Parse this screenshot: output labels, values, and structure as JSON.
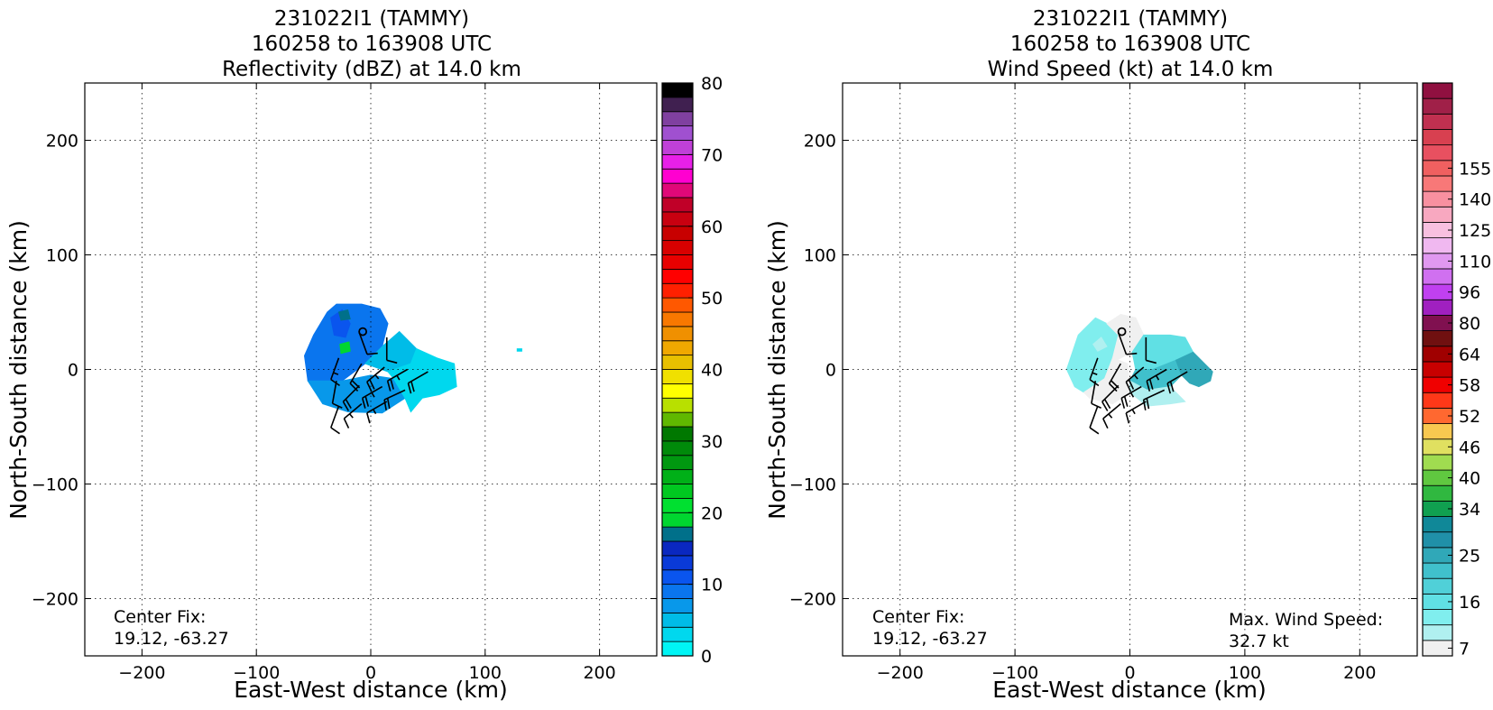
{
  "panels": [
    {
      "title_lines": [
        "231022I1 (TAMMY)",
        "160258 to 163908 UTC",
        "Reflectivity (dBZ) at 14.0 km"
      ],
      "xlabel": "East-West distance (km)",
      "ylabel": "North-South distance (km)",
      "center_fix_label": "Center Fix:",
      "center_fix_value": "19.12, -63.27",
      "max_wind_label": "",
      "max_wind_value": ""
    },
    {
      "title_lines": [
        "231022I1 (TAMMY)",
        "160258 to 163908 UTC",
        "Wind Speed (kt) at 14.0 km"
      ],
      "xlabel": "East-West distance (km)",
      "ylabel": "North-South distance (km)",
      "center_fix_label": "Center Fix:",
      "center_fix_value": "19.12, -63.27",
      "max_wind_label": "Max. Wind Speed:",
      "max_wind_value": "32.7 kt"
    }
  ],
  "chart_data": [
    {
      "type": "heatmap",
      "title": "231022I1 (TAMMY) 160258 to 163908 UTC Reflectivity (dBZ) at 14.0 km",
      "xlabel": "East-West distance (km)",
      "ylabel": "North-South distance (km)",
      "xlim": [
        -250,
        250
      ],
      "ylim": [
        -250,
        250
      ],
      "xticks": [
        -200,
        -100,
        0,
        100,
        200
      ],
      "yticks": [
        -200,
        -100,
        0,
        100,
        200
      ],
      "xtick_labels": [
        "−200",
        "−100",
        "0",
        "100",
        "200"
      ],
      "ytick_labels": [
        "−200",
        "−100",
        "0",
        "100",
        "200"
      ],
      "grid": true,
      "center_marker_km": [
        -7,
        33
      ],
      "echo_region_outline_km": [
        [
          -30,
          57
        ],
        [
          -8,
          57
        ],
        [
          8,
          53
        ],
        [
          15,
          40
        ],
        [
          25,
          33
        ],
        [
          40,
          18
        ],
        [
          58,
          10
        ],
        [
          73,
          5
        ],
        [
          75,
          -15
        ],
        [
          60,
          -22
        ],
        [
          45,
          -25
        ],
        [
          35,
          -37
        ],
        [
          10,
          -38
        ],
        [
          -20,
          -37
        ],
        [
          -42,
          -30
        ],
        [
          -55,
          -15
        ],
        [
          -58,
          12
        ],
        [
          -50,
          30
        ],
        [
          -38,
          50
        ]
      ],
      "echo_patches": [
        {
          "dbz": 11,
          "polygon_km": [
            [
              -30,
              57
            ],
            [
              -8,
              57
            ],
            [
              8,
              53
            ],
            [
              15,
              40
            ],
            [
              10,
              20
            ],
            [
              -5,
              5
            ],
            [
              -25,
              -10
            ],
            [
              -45,
              -15
            ],
            [
              -55,
              -10
            ],
            [
              -58,
              12
            ],
            [
              -50,
              30
            ],
            [
              -38,
              50
            ]
          ]
        },
        {
          "dbz": 8,
          "polygon_km": [
            [
              -55,
              -10
            ],
            [
              -25,
              -10
            ],
            [
              0,
              -5
            ],
            [
              20,
              -8
            ],
            [
              30,
              -25
            ],
            [
              10,
              -38
            ],
            [
              -20,
              -37
            ],
            [
              -42,
              -30
            ]
          ]
        },
        {
          "dbz": 13,
          "polygon_km": [
            [
              -35,
              45
            ],
            [
              -25,
              52
            ],
            [
              -18,
              40
            ],
            [
              -22,
              28
            ],
            [
              -32,
              30
            ]
          ]
        },
        {
          "dbz": 6,
          "polygon_km": [
            [
              -5,
              5
            ],
            [
              10,
              20
            ],
            [
              25,
              33
            ],
            [
              40,
              18
            ],
            [
              35,
              5
            ],
            [
              15,
              -2
            ]
          ]
        },
        {
          "dbz": 3,
          "polygon_km": [
            [
              15,
              -2
            ],
            [
              35,
              5
            ],
            [
              40,
              18
            ],
            [
              58,
              10
            ],
            [
              73,
              5
            ],
            [
              75,
              -15
            ],
            [
              60,
              -22
            ],
            [
              45,
              -25
            ],
            [
              35,
              -37
            ],
            [
              30,
              -25
            ],
            [
              20,
              -8
            ]
          ]
        },
        {
          "dbz": 22,
          "polygon_km": [
            [
              -28,
              50
            ],
            [
              -20,
              52
            ],
            [
              -18,
              44
            ],
            [
              -26,
              43
            ]
          ]
        },
        {
          "dbz": 24,
          "polygon_km": [
            [
              -27,
              22
            ],
            [
              -19,
              24
            ],
            [
              -18,
              16
            ],
            [
              -26,
              14
            ]
          ]
        },
        {
          "dbz": 3,
          "polygon_km": [
            [
              128,
              18
            ],
            [
              132,
              18
            ],
            [
              132,
              16
            ],
            [
              128,
              16
            ]
          ]
        }
      ],
      "wind_barbs_km": [
        {
          "x": -28,
          "y": 10,
          "dir_deg": 200,
          "kt": 15
        },
        {
          "x": -8,
          "y": 5,
          "dir_deg": 210,
          "kt": 20
        },
        {
          "x": 12,
          "y": 2,
          "dir_deg": 230,
          "kt": 25
        },
        {
          "x": 32,
          "y": 0,
          "dir_deg": 240,
          "kt": 25
        },
        {
          "x": 50,
          "y": -2,
          "dir_deg": 240,
          "kt": 20
        },
        {
          "x": -30,
          "y": -10,
          "dir_deg": 190,
          "kt": 10
        },
        {
          "x": -10,
          "y": -14,
          "dir_deg": 225,
          "kt": 20
        },
        {
          "x": 10,
          "y": -15,
          "dir_deg": 240,
          "kt": 25
        },
        {
          "x": 30,
          "y": -18,
          "dir_deg": 245,
          "kt": 20
        },
        {
          "x": -28,
          "y": -32,
          "dir_deg": 200,
          "kt": 10
        },
        {
          "x": -8,
          "y": -30,
          "dir_deg": 230,
          "kt": 15
        },
        {
          "x": 14,
          "y": -28,
          "dir_deg": 240,
          "kt": 15
        },
        {
          "x": -10,
          "y": 32,
          "dir_deg": 160,
          "kt": 10
        },
        {
          "x": 14,
          "y": 28,
          "dir_deg": 180,
          "kt": 10
        }
      ],
      "colorbar": {
        "min": 0,
        "max": 80,
        "step": 2.5,
        "tick_values": [
          0,
          10,
          20,
          30,
          40,
          50,
          60,
          70,
          80
        ],
        "tick_labels": [
          "0",
          "10",
          "20",
          "30",
          "40",
          "50",
          "60",
          "70",
          "80"
        ],
        "colors": [
          "#00f5f5",
          "#00d8ee",
          "#00bce8",
          "#0898ea",
          "#0a75ee",
          "#0a55ee",
          "#0a3ad8",
          "#0a28c0",
          "#00708a",
          "#00d630",
          "#00e030",
          "#00c820",
          "#00b018",
          "#009810",
          "#008a0a",
          "#007800",
          "#60b800",
          "#b8e000",
          "#ffff00",
          "#f0e000",
          "#e8c000",
          "#f0a800",
          "#f09000",
          "#f87800",
          "#ff5800",
          "#ff2000",
          "#ff0000",
          "#e80000",
          "#d80000",
          "#c80000",
          "#c80010",
          "#c00028",
          "#e00878",
          "#ff00d0",
          "#e820e8",
          "#c040d8",
          "#a050d0",
          "#8040a0",
          "#402050",
          "#000000"
        ]
      }
    },
    {
      "type": "heatmap",
      "title": "231022I1 (TAMMY) 160258 to 163908 UTC Wind Speed (kt) at 14.0 km",
      "xlabel": "East-West distance (km)",
      "ylabel": "North-South distance (km)",
      "xlim": [
        -250,
        250
      ],
      "ylim": [
        -250,
        250
      ],
      "xticks": [
        -200,
        -100,
        0,
        100,
        200
      ],
      "yticks": [
        -200,
        -100,
        0,
        100,
        200
      ],
      "xtick_labels": [
        "−200",
        "−100",
        "0",
        "100",
        "200"
      ],
      "ytick_labels": [
        "−200",
        "−100",
        "0",
        "100",
        "200"
      ],
      "grid": true,
      "center_marker_km": [
        -7,
        33
      ],
      "max_wind_speed_kt": 32.7,
      "echo_region_outline_km": [
        [
          -30,
          45
        ],
        [
          -20,
          40
        ],
        [
          -8,
          48
        ],
        [
          5,
          45
        ],
        [
          15,
          30
        ],
        [
          35,
          30
        ],
        [
          48,
          28
        ],
        [
          55,
          15
        ],
        [
          65,
          5
        ],
        [
          72,
          -2
        ],
        [
          70,
          -10
        ],
        [
          60,
          -15
        ],
        [
          48,
          -28
        ],
        [
          35,
          -30
        ],
        [
          15,
          -32
        ],
        [
          -15,
          -30
        ],
        [
          -35,
          -25
        ],
        [
          -48,
          -15
        ],
        [
          -55,
          0
        ],
        [
          -50,
          15
        ],
        [
          -45,
          30
        ]
      ],
      "echo_patches": [
        {
          "kt": 14,
          "polygon_km": [
            [
              -30,
              45
            ],
            [
              -20,
              40
            ],
            [
              -10,
              30
            ],
            [
              -15,
              10
            ],
            [
              -22,
              -8
            ],
            [
              -40,
              -20
            ],
            [
              -48,
              -15
            ],
            [
              -55,
              0
            ],
            [
              -50,
              15
            ],
            [
              -45,
              30
            ]
          ]
        },
        {
          "kt": 6,
          "polygon_km": [
            [
              -20,
              40
            ],
            [
              -8,
              48
            ],
            [
              5,
              45
            ],
            [
              12,
              30
            ],
            [
              2,
              15
            ],
            [
              -12,
              8
            ],
            [
              -15,
              10
            ],
            [
              -10,
              30
            ]
          ]
        },
        {
          "kt": 8,
          "polygon_km": [
            [
              -22,
              -8
            ],
            [
              -15,
              10
            ],
            [
              -2,
              5
            ],
            [
              0,
              -20
            ],
            [
              -15,
              -30
            ],
            [
              -35,
              -25
            ],
            [
              -40,
              -20
            ]
          ]
        },
        {
          "kt": 16,
          "polygon_km": [
            [
              2,
              15
            ],
            [
              12,
              30
            ],
            [
              15,
              30
            ],
            [
              35,
              30
            ],
            [
              48,
              28
            ],
            [
              55,
              15
            ],
            [
              40,
              8
            ],
            [
              20,
              0
            ],
            [
              5,
              0
            ]
          ]
        },
        {
          "kt": 22,
          "polygon_km": [
            [
              5,
              0
            ],
            [
              20,
              0
            ],
            [
              40,
              8
            ],
            [
              45,
              -5
            ],
            [
              35,
              -15
            ],
            [
              15,
              -18
            ],
            [
              0,
              -10
            ]
          ]
        },
        {
          "kt": 12,
          "polygon_km": [
            [
              0,
              -10
            ],
            [
              15,
              -18
            ],
            [
              35,
              -15
            ],
            [
              48,
              -28
            ],
            [
              35,
              -30
            ],
            [
              15,
              -32
            ],
            [
              0,
              -20
            ]
          ]
        },
        {
          "kt": 25,
          "polygon_km": [
            [
              55,
              15
            ],
            [
              65,
              5
            ],
            [
              72,
              -2
            ],
            [
              70,
              -10
            ],
            [
              60,
              -15
            ],
            [
              52,
              -12
            ],
            [
              45,
              -5
            ],
            [
              40,
              8
            ]
          ]
        },
        {
          "kt": 12,
          "polygon_km": [
            [
              -25,
              28
            ],
            [
              -20,
              20
            ],
            [
              -28,
              16
            ],
            [
              -32,
              22
            ]
          ]
        }
      ],
      "wind_barbs_km": [
        {
          "x": -28,
          "y": 10,
          "dir_deg": 200,
          "kt": 15
        },
        {
          "x": -8,
          "y": 5,
          "dir_deg": 210,
          "kt": 20
        },
        {
          "x": 12,
          "y": 2,
          "dir_deg": 230,
          "kt": 25
        },
        {
          "x": 32,
          "y": 0,
          "dir_deg": 240,
          "kt": 25
        },
        {
          "x": 50,
          "y": -2,
          "dir_deg": 240,
          "kt": 20
        },
        {
          "x": -30,
          "y": -10,
          "dir_deg": 190,
          "kt": 10
        },
        {
          "x": -10,
          "y": -14,
          "dir_deg": 225,
          "kt": 20
        },
        {
          "x": 10,
          "y": -15,
          "dir_deg": 240,
          "kt": 25
        },
        {
          "x": 30,
          "y": -18,
          "dir_deg": 245,
          "kt": 20
        },
        {
          "x": -28,
          "y": -32,
          "dir_deg": 200,
          "kt": 10
        },
        {
          "x": -8,
          "y": -30,
          "dir_deg": 230,
          "kt": 15
        },
        {
          "x": 14,
          "y": -28,
          "dir_deg": 240,
          "kt": 15
        },
        {
          "x": -10,
          "y": 32,
          "dir_deg": 160,
          "kt": 10
        },
        {
          "x": 14,
          "y": 28,
          "dir_deg": 180,
          "kt": 10
        }
      ],
      "colorbar": {
        "levels": [
          7,
          10,
          13,
          16,
          19,
          22,
          25,
          28,
          31,
          34,
          37,
          40,
          43,
          46,
          49,
          52,
          55,
          58,
          61,
          64,
          72,
          80,
          88,
          96,
          103,
          110,
          118,
          125,
          133,
          140,
          148,
          155,
          162
        ],
        "tick_values": [
          7,
          16,
          25,
          34,
          40,
          46,
          52,
          58,
          64,
          80,
          96,
          110,
          125,
          140,
          155
        ],
        "tick_labels": [
          "7",
          "16",
          "25",
          "34",
          "40",
          "46",
          "52",
          "58",
          "64",
          "80",
          "96",
          "110",
          "125",
          "140",
          "155"
        ],
        "colors": [
          "#f0f0f0",
          "#b0f0f0",
          "#80eeee",
          "#60e0e4",
          "#50d0d8",
          "#40c0cc",
          "#30a8b8",
          "#2090a8",
          "#108898",
          "#10a050",
          "#30b840",
          "#60c840",
          "#a0dc50",
          "#e0e060",
          "#f8c850",
          "#ff6830",
          "#ff3818",
          "#f00000",
          "#c80000",
          "#a00000",
          "#701010",
          "#801050",
          "#a020c0",
          "#c040f0",
          "#d070f0",
          "#e098f0",
          "#f0b8f0",
          "#f8c0e0",
          "#f8a8c0",
          "#f890a0",
          "#f87878",
          "#f06060",
          "#e85060",
          "#d84050",
          "#c03050",
          "#a02048",
          "#901040"
        ]
      }
    }
  ]
}
